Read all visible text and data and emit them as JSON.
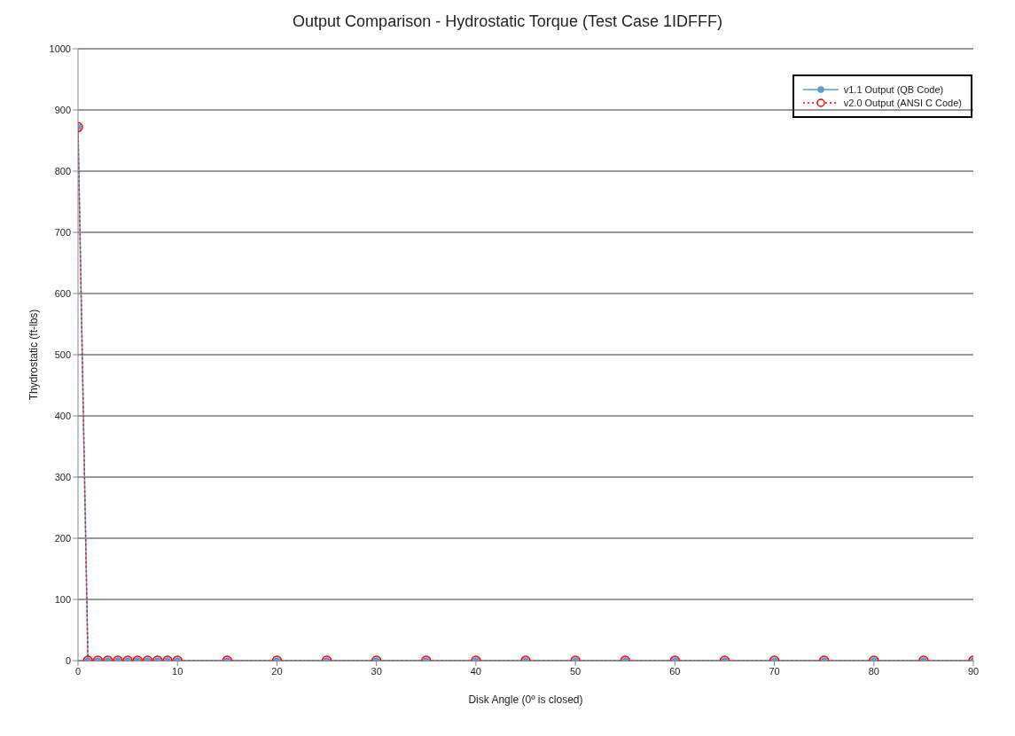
{
  "chart_data": {
    "type": "line",
    "title": "Output Comparison - Hydrostatic Torque (Test Case 1IDFFF)",
    "xlabel": "Disk Angle (0º is closed)",
    "ylabel": "Thydrostatic (ft-lbs)",
    "x": [
      0,
      1,
      2,
      3,
      4,
      5,
      6,
      7,
      8,
      9,
      10,
      15,
      20,
      25,
      30,
      35,
      40,
      45,
      50,
      55,
      60,
      65,
      70,
      75,
      80,
      85,
      90
    ],
    "series": [
      {
        "name": "v1.1 Output (QB Code)",
        "color": "#5b9bd5",
        "line_style": "solid",
        "values": [
          872,
          0,
          0,
          0,
          0,
          0,
          0,
          0,
          0,
          0,
          0,
          0,
          0,
          0,
          0,
          0,
          0,
          0,
          0,
          0,
          0,
          0,
          0,
          0,
          0,
          0,
          0
        ]
      },
      {
        "name": "v2.0 Output (ANSI C Code)",
        "color": "#ff0000",
        "line_style": "dotted",
        "values": [
          872,
          0,
          0,
          0,
          0,
          0,
          0,
          0,
          0,
          0,
          0,
          0,
          0,
          0,
          0,
          0,
          0,
          0,
          0,
          0,
          0,
          0,
          0,
          0,
          0,
          0,
          0
        ]
      }
    ],
    "xlim": [
      0,
      90
    ],
    "xticks": [
      0,
      10,
      20,
      30,
      40,
      50,
      60,
      70,
      80,
      90
    ],
    "ylim": [
      0,
      1000
    ],
    "yticks": [
      0,
      100,
      200,
      300,
      400,
      500,
      600,
      700,
      800,
      900,
      1000
    ],
    "grid": "y",
    "legend": "top right",
    "marker": "circle"
  }
}
